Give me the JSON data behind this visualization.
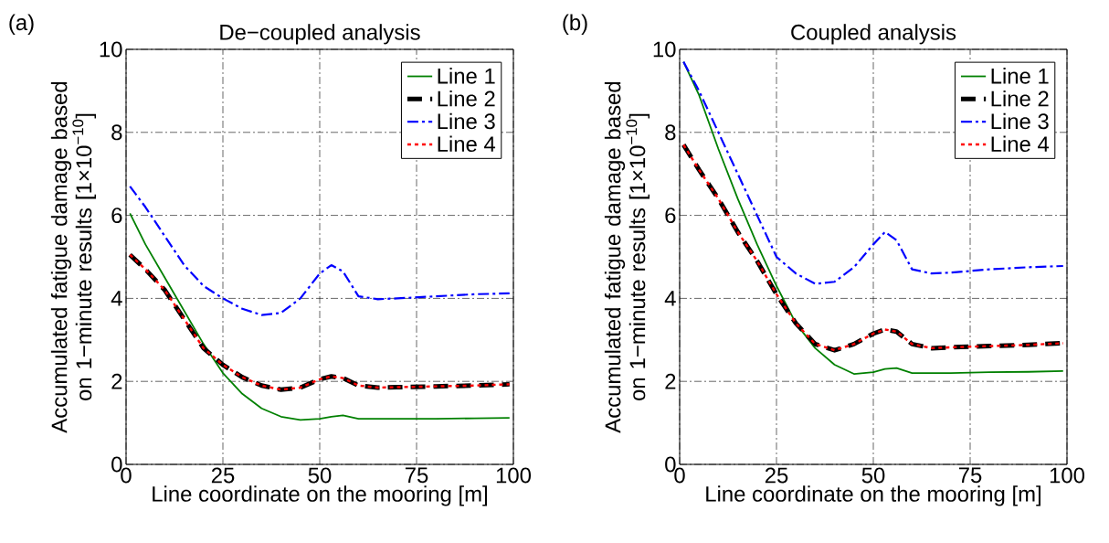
{
  "chart_data": [
    {
      "type": "line",
      "title": "De−coupled analysis",
      "xlabel": "Line coordinate on the mooring [m]",
      "ylabel": "Accumulated fatigue damage based on 1−minute results [1×10$^{−10}$]",
      "annotations": [
        "(a)"
      ],
      "x": [
        1,
        5,
        10,
        15,
        20,
        25,
        30,
        35,
        40,
        45,
        50,
        53,
        56,
        60,
        65,
        70,
        80,
        90,
        99
      ],
      "series": [
        {
          "name": "Line 1",
          "color": "#008000",
          "line_style": "solid",
          "values": [
            6.05,
            5.3,
            4.5,
            3.7,
            2.9,
            2.2,
            1.7,
            1.35,
            1.15,
            1.07,
            1.1,
            1.15,
            1.18,
            1.1,
            1.1,
            1.1,
            1.1,
            1.11,
            1.12
          ]
        },
        {
          "name": "Line 2",
          "color": "#000000",
          "line_style": "dashed",
          "values": [
            5.05,
            4.7,
            4.2,
            3.5,
            2.8,
            2.4,
            2.1,
            1.9,
            1.8,
            1.85,
            2.05,
            2.12,
            2.08,
            1.9,
            1.85,
            1.86,
            1.88,
            1.9,
            1.93
          ]
        },
        {
          "name": "Line 3",
          "color": "#0000ff",
          "line_style": "dashdot",
          "values": [
            6.7,
            6.2,
            5.5,
            4.8,
            4.3,
            4.0,
            3.75,
            3.6,
            3.65,
            4.0,
            4.6,
            4.8,
            4.65,
            4.05,
            3.98,
            4.0,
            4.05,
            4.1,
            4.12
          ]
        },
        {
          "name": "Line 4",
          "color": "#ff0000",
          "line_style": "dotted",
          "values": [
            5.05,
            4.7,
            4.2,
            3.5,
            2.8,
            2.4,
            2.1,
            1.9,
            1.8,
            1.85,
            2.05,
            2.12,
            2.08,
            1.9,
            1.85,
            1.86,
            1.88,
            1.9,
            1.93
          ]
        }
      ],
      "xlim": [
        0,
        100
      ],
      "xticks": [
        0,
        25,
        50,
        75,
        100
      ],
      "ylim": [
        0,
        10
      ],
      "yticks": [
        0,
        2,
        4,
        6,
        8,
        10
      ],
      "grid": true,
      "legend": "top right",
      "marker": "none"
    },
    {
      "type": "line",
      "title": "Coupled analysis",
      "xlabel": "Line coordinate on the mooring [m]",
      "ylabel": "Accumulated fatigue damage based on 1−minute results [1×10$^{−10}$]",
      "annotations": [
        "(b)"
      ],
      "x": [
        1,
        5,
        10,
        15,
        20,
        25,
        30,
        35,
        40,
        45,
        50,
        53,
        56,
        60,
        65,
        70,
        80,
        90,
        99
      ],
      "series": [
        {
          "name": "Line 1",
          "color": "#008000",
          "line_style": "solid",
          "values": [
            9.7,
            8.9,
            7.6,
            6.4,
            5.3,
            4.3,
            3.4,
            2.8,
            2.4,
            2.18,
            2.22,
            2.3,
            2.32,
            2.2,
            2.2,
            2.2,
            2.22,
            2.23,
            2.25
          ]
        },
        {
          "name": "Line 2",
          "color": "#000000",
          "line_style": "dashed",
          "values": [
            7.7,
            7.1,
            6.4,
            5.6,
            4.9,
            4.1,
            3.4,
            2.9,
            2.75,
            2.9,
            3.15,
            3.25,
            3.2,
            2.9,
            2.8,
            2.82,
            2.85,
            2.88,
            2.92
          ]
        },
        {
          "name": "Line 3",
          "color": "#0000ff",
          "line_style": "dashdot",
          "values": [
            9.7,
            9.0,
            8.0,
            7.0,
            6.0,
            5.0,
            4.6,
            4.35,
            4.4,
            4.75,
            5.3,
            5.6,
            5.4,
            4.7,
            4.6,
            4.62,
            4.7,
            4.75,
            4.78
          ]
        },
        {
          "name": "Line 4",
          "color": "#ff0000",
          "line_style": "dotted",
          "values": [
            7.7,
            7.1,
            6.4,
            5.6,
            4.9,
            4.1,
            3.4,
            2.9,
            2.75,
            2.9,
            3.15,
            3.25,
            3.2,
            2.9,
            2.8,
            2.82,
            2.85,
            2.88,
            2.92
          ]
        }
      ],
      "xlim": [
        0,
        100
      ],
      "xticks": [
        0,
        25,
        50,
        75,
        100
      ],
      "ylim": [
        0,
        10
      ],
      "yticks": [
        0,
        2,
        4,
        6,
        8,
        10
      ],
      "grid": true,
      "legend": "top right",
      "marker": "none"
    }
  ]
}
